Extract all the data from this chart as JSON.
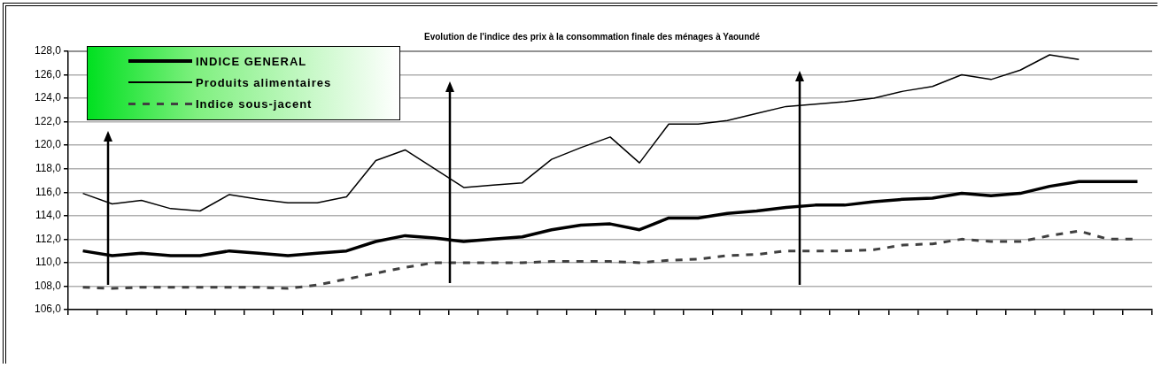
{
  "chart_data": {
    "type": "line",
    "title": "Evolution de l'indice des prix à la consommation finale des ménages à Yaoundé",
    "categories": [
      null,
      null,
      null,
      null,
      null,
      null,
      null,
      null,
      null,
      null,
      null,
      null,
      null,
      null,
      null,
      null,
      null,
      null,
      null,
      null,
      null,
      null,
      null,
      null,
      null,
      null,
      null,
      null,
      null,
      null,
      null,
      null,
      null,
      null,
      null,
      null,
      null
    ],
    "series": [
      {
        "name": "INDICE GENERAL",
        "color": "#000000",
        "line_style": "solid",
        "values": [
          111.0,
          110.6,
          110.8,
          110.6,
          110.6,
          111.0,
          110.8,
          110.6,
          110.8,
          111.0,
          111.8,
          112.3,
          112.1,
          111.8,
          112.0,
          112.2,
          112.8,
          113.2,
          113.3,
          112.8,
          113.8,
          113.8,
          114.2,
          114.4,
          114.7,
          114.9,
          114.9,
          115.2,
          115.4,
          115.5,
          115.9,
          115.7,
          115.9,
          116.5,
          116.9,
          116.9,
          116.9
        ]
      },
      {
        "name": "Produits alimentaires",
        "color": "#000000",
        "line_style": "solid",
        "values": [
          115.9,
          115.0,
          115.3,
          114.6,
          114.4,
          115.8,
          115.4,
          115.1,
          115.1,
          115.6,
          118.7,
          119.6,
          118.0,
          116.4,
          116.6,
          116.8,
          118.8,
          119.8,
          120.7,
          118.5,
          121.8,
          121.8,
          122.1,
          122.7,
          123.3,
          123.5,
          123.7,
          124.0,
          124.6,
          125.0,
          126.0,
          125.6,
          126.4,
          127.7,
          127.3,
          null,
          null
        ]
      },
      {
        "name": "Indice sous-jacent",
        "color": "#404040",
        "line_style": "dashed",
        "values": [
          107.9,
          107.8,
          107.9,
          107.9,
          107.9,
          107.9,
          107.9,
          107.8,
          108.1,
          108.6,
          109.1,
          109.6,
          110.0,
          110.0,
          110.0,
          110.0,
          110.1,
          110.1,
          110.1,
          110.0,
          110.2,
          110.3,
          110.6,
          110.7,
          111.0,
          111.0,
          111.0,
          111.1,
          111.5,
          111.6,
          112.0,
          111.8,
          111.8,
          112.3,
          112.7,
          112.0,
          112.0
        ]
      }
    ],
    "ylim": [
      106,
      128
    ],
    "yticks": [
      {
        "value": 106,
        "label": "106,0"
      },
      {
        "value": 108,
        "label": "108,0"
      },
      {
        "value": 110,
        "label": "110,0"
      },
      {
        "value": 112,
        "label": "112,0"
      },
      {
        "value": 114,
        "label": "114,0"
      },
      {
        "value": 116,
        "label": "116,0"
      },
      {
        "value": 118,
        "label": "118,0"
      },
      {
        "value": 120,
        "label": "120,0"
      },
      {
        "value": 122,
        "label": "122,0"
      },
      {
        "value": 124,
        "label": "124,0"
      },
      {
        "value": 126,
        "label": "126,0"
      },
      {
        "value": 128,
        "label": "128,0"
      }
    ],
    "tick_labels": "y",
    "grid": "y",
    "legend": "top left",
    "marker": "none"
  }
}
